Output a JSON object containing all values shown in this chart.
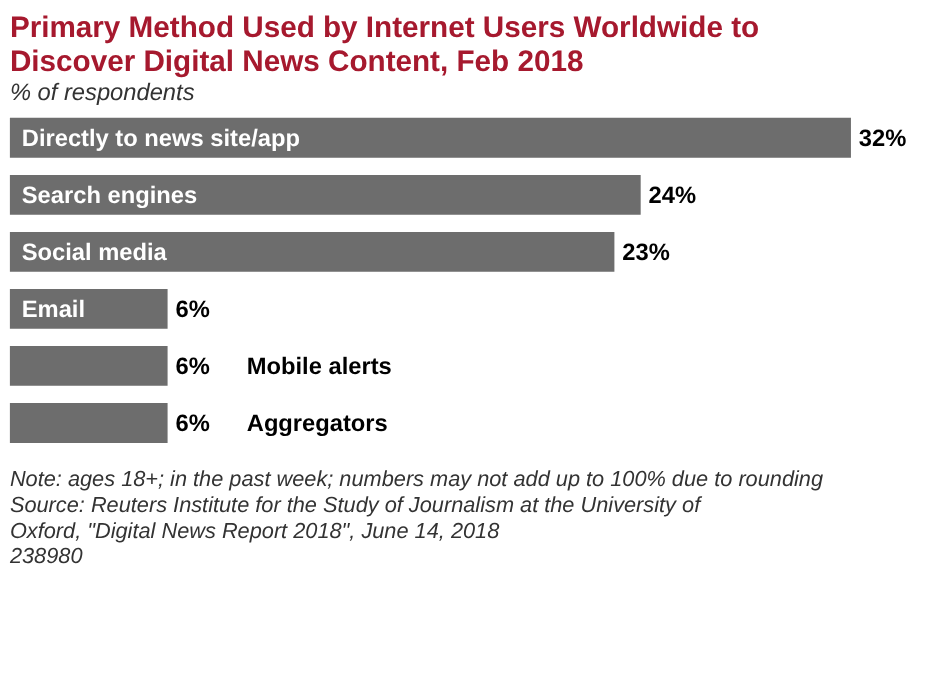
{
  "chart_data": {
    "type": "bar",
    "orientation": "horizontal",
    "title": "Primary Method Used by Internet Users Worldwide to Discover Digital News Content, Feb 2018",
    "subtitle": "% of respondents",
    "categories": [
      "Directly to news site/app",
      "Search engines",
      "Social media",
      "Email",
      "Mobile alerts",
      "Aggregators"
    ],
    "values": [
      32,
      24,
      23,
      6,
      6,
      6
    ],
    "value_labels": [
      "32%",
      "24%",
      "23%",
      "6%",
      "6%",
      "6%"
    ],
    "color": "#6d6d6d",
    "annotations": [
      "Note: ages 18+; in the past week; numbers may not add up to 100% due to rounding",
      "Source: Reuters Institute for the Study of Journalism at the University of Oxford, \"Digital News Report 2018\", June 14, 2018",
      "238980"
    ]
  }
}
